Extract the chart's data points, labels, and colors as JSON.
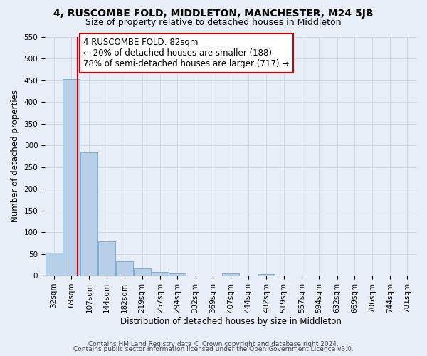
{
  "title": "4, RUSCOMBE FOLD, MIDDLETON, MANCHESTER, M24 5JB",
  "subtitle": "Size of property relative to detached houses in Middleton",
  "xlabel": "Distribution of detached houses by size in Middleton",
  "ylabel": "Number of detached properties",
  "bin_labels": [
    "32sqm",
    "69sqm",
    "107sqm",
    "144sqm",
    "182sqm",
    "219sqm",
    "257sqm",
    "294sqm",
    "332sqm",
    "369sqm",
    "407sqm",
    "444sqm",
    "482sqm",
    "519sqm",
    "557sqm",
    "594sqm",
    "632sqm",
    "669sqm",
    "706sqm",
    "744sqm",
    "781sqm"
  ],
  "bar_values": [
    53,
    452,
    283,
    79,
    33,
    17,
    9,
    5,
    0,
    0,
    5,
    0,
    4,
    0,
    0,
    0,
    0,
    0,
    0,
    0,
    0
  ],
  "bar_color": "#b8cfe8",
  "bar_edge_color": "#7aaed6",
  "vline_x_idx": 1,
  "vline_color": "#cc0000",
  "annotation_text": "4 RUSCOMBE FOLD: 82sqm\n← 20% of detached houses are smaller (188)\n78% of semi-detached houses are larger (717) →",
  "annotation_box_color": "#ffffff",
  "annotation_box_edge": "#cc0000",
  "ylim": [
    0,
    550
  ],
  "yticks": [
    0,
    50,
    100,
    150,
    200,
    250,
    300,
    350,
    400,
    450,
    500,
    550
  ],
  "grid_color": "#d0d8e8",
  "background_color": "#e8eef8",
  "footer_line1": "Contains HM Land Registry data © Crown copyright and database right 2024.",
  "footer_line2": "Contains public sector information licensed under the Open Government Licence v3.0.",
  "title_fontsize": 10,
  "subtitle_fontsize": 9,
  "axis_fontsize": 8.5,
  "tick_fontsize": 7.5,
  "annotation_fontsize": 8.5,
  "footer_fontsize": 6.5
}
